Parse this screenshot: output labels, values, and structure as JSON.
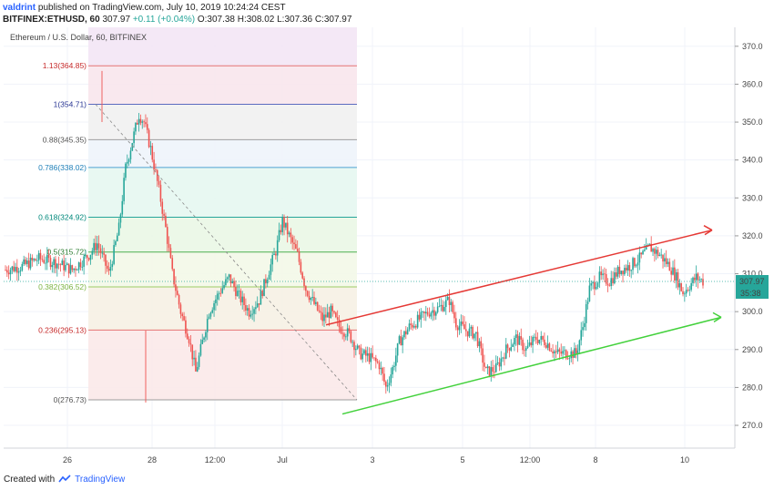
{
  "header": {
    "line1_author": "valdrint",
    "line1_rest": "published on TradingView.com, July 10, 2019 10:24:24 CEST",
    "symbol": "BITFINEX:ETHUSD, 60",
    "last": "307.97",
    "change": "+0.11 (+0.04%)",
    "ohlc": "O:307.38 H:308.02 L:307.36 C:307.97"
  },
  "footer": {
    "created_with": "Created with",
    "brand": "TradingView"
  },
  "colors": {
    "up": "#26a69a",
    "down": "#ef5350",
    "red_channel": "#e53935",
    "green_channel": "#43d13c"
  },
  "chart_data": {
    "type": "candlestick",
    "title": "Ethereum / U.S. Dollar, 60, BITFINEX",
    "ylim": [
      264,
      375
    ],
    "y_ticks": [
      270,
      280,
      290,
      300,
      310,
      320,
      330,
      340,
      350,
      360,
      370
    ],
    "x_ticks": [
      "26",
      "28",
      "12:00",
      "Jul",
      "3",
      "5",
      "12:00",
      "8",
      "10"
    ],
    "price_label": "307.97",
    "countdown_label": "35:38",
    "fibonacci": [
      {
        "label": "1.13(364.85)",
        "price": 364.85
      },
      {
        "label": "1(354.71)",
        "price": 354.71
      },
      {
        "label": "0.88(345.35)",
        "price": 345.35
      },
      {
        "label": "0.786(338.02)",
        "price": 338.02
      },
      {
        "label": "0.618(324.92)",
        "price": 324.92
      },
      {
        "label": "0.5(315.72)",
        "price": 315.72
      },
      {
        "label": "0.382(306.52)",
        "price": 306.52
      },
      {
        "label": "0.236(295.13)",
        "price": 295.13
      },
      {
        "label": "0(276.73)",
        "price": 276.73
      }
    ],
    "channel_upper": [
      [
        0.0,
        296.5
      ],
      [
        1.0,
        321.5
      ]
    ],
    "channel_lower": [
      [
        0.0,
        273.0
      ],
      [
        1.0,
        298.5
      ]
    ],
    "path_points": [
      [
        0,
        311
      ],
      [
        10,
        312
      ],
      [
        20,
        314
      ],
      [
        30,
        313
      ],
      [
        40,
        311
      ],
      [
        50,
        315
      ],
      [
        55,
        318
      ],
      [
        62,
        310
      ],
      [
        68,
        322
      ],
      [
        72,
        338
      ],
      [
        76,
        345
      ],
      [
        80,
        352
      ],
      [
        83,
        350
      ],
      [
        87,
        343
      ],
      [
        92,
        332
      ],
      [
        96,
        322
      ],
      [
        100,
        310
      ],
      [
        105,
        300
      ],
      [
        110,
        293
      ],
      [
        114,
        284
      ],
      [
        118,
        292
      ],
      [
        122,
        300
      ],
      [
        128,
        305
      ],
      [
        134,
        309
      ],
      [
        140,
        304
      ],
      [
        146,
        300
      ],
      [
        152,
        303
      ],
      [
        158,
        311
      ],
      [
        162,
        316
      ],
      [
        166,
        324
      ],
      [
        170,
        320
      ],
      [
        175,
        315
      ],
      [
        180,
        306
      ],
      [
        185,
        302
      ],
      [
        190,
        298
      ],
      [
        195,
        300
      ],
      [
        200,
        296
      ],
      [
        206,
        294
      ],
      [
        212,
        289
      ],
      [
        218,
        288
      ],
      [
        224,
        286
      ],
      [
        228,
        280
      ],
      [
        232,
        285
      ],
      [
        236,
        292
      ],
      [
        242,
        296
      ],
      [
        248,
        298
      ],
      [
        254,
        300
      ],
      [
        260,
        301
      ],
      [
        266,
        303
      ],
      [
        270,
        297
      ],
      [
        276,
        295
      ],
      [
        282,
        294
      ],
      [
        288,
        284
      ],
      [
        294,
        285
      ],
      [
        300,
        290
      ],
      [
        306,
        293
      ],
      [
        312,
        290
      ],
      [
        318,
        293
      ],
      [
        324,
        292
      ],
      [
        330,
        289
      ],
      [
        336,
        289
      ],
      [
        342,
        289
      ],
      [
        346,
        296
      ],
      [
        350,
        306
      ],
      [
        356,
        309
      ],
      [
        362,
        308
      ],
      [
        368,
        311
      ],
      [
        374,
        312
      ],
      [
        380,
        314
      ],
      [
        386,
        317
      ],
      [
        392,
        315
      ],
      [
        398,
        312
      ],
      [
        402,
        309
      ],
      [
        406,
        305
      ],
      [
        410,
        307
      ],
      [
        414,
        309
      ],
      [
        418,
        308
      ]
    ]
  }
}
